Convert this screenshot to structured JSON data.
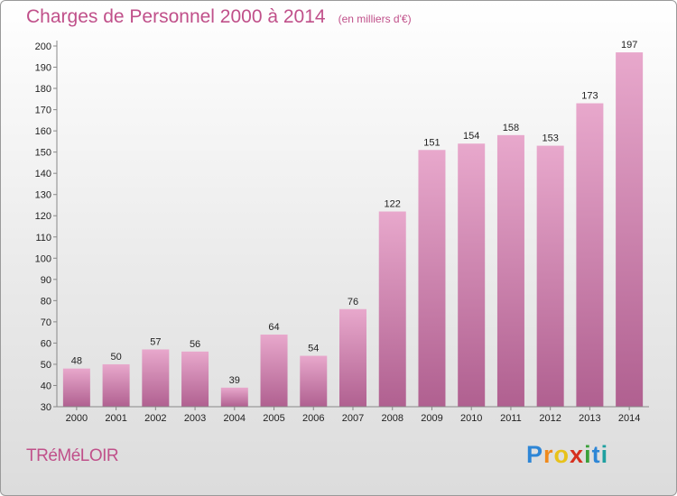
{
  "header": {
    "title": "Charges de Personnel 2000 à 2014",
    "unit": "(en milliers d'€)"
  },
  "footer": {
    "commune": "TRéMéLOIR",
    "brand_letters": [
      "P",
      "r",
      "o",
      "x",
      "i",
      "t",
      "i"
    ],
    "brand_colors": [
      "#2e86d6",
      "#f08a1c",
      "#e8c21a",
      "#d6301e",
      "#3aa03a",
      "#2e86d6",
      "#1fa0a0"
    ]
  },
  "colors": {
    "title": "#c0508a",
    "bar_top": "#e8a8cc",
    "bar_bottom": "#b06090"
  },
  "chart_data": {
    "type": "bar",
    "title": "Charges de Personnel 2000 à 2014",
    "categories": [
      "2000",
      "2001",
      "2002",
      "2003",
      "2004",
      "2005",
      "2006",
      "2007",
      "2008",
      "2009",
      "2010",
      "2011",
      "2012",
      "2013",
      "2014"
    ],
    "values": [
      48,
      50,
      57,
      56,
      39,
      64,
      54,
      76,
      122,
      151,
      154,
      158,
      153,
      173,
      197
    ],
    "ylim": [
      30,
      200
    ],
    "yticks": [
      30,
      40,
      50,
      60,
      70,
      80,
      90,
      100,
      110,
      120,
      130,
      140,
      150,
      160,
      170,
      180,
      190,
      200
    ],
    "grid": false,
    "legend": "none"
  }
}
